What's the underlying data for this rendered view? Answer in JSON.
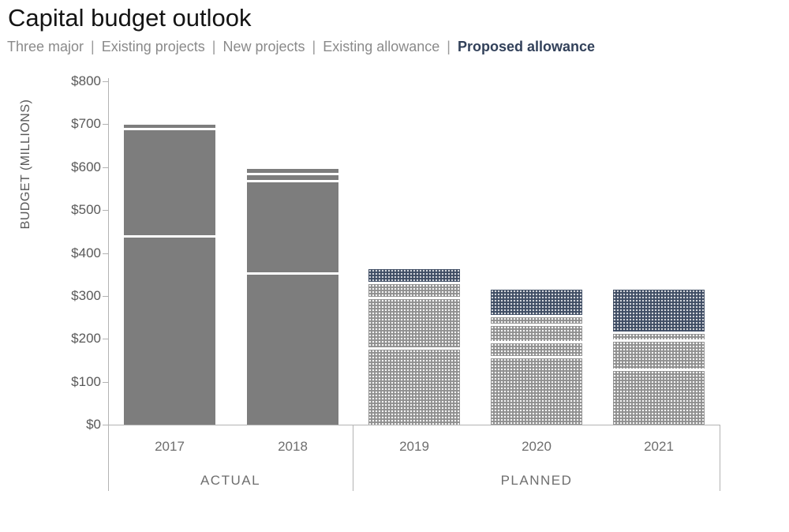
{
  "title": "Capital budget outlook",
  "legend": {
    "separator": "|",
    "items": [
      {
        "label": "Three major",
        "emphasis": false
      },
      {
        "label": "Existing projects",
        "emphasis": false
      },
      {
        "label": "New projects",
        "emphasis": false
      },
      {
        "label": "Existing allowance",
        "emphasis": false
      },
      {
        "label": "Proposed allowance",
        "emphasis": true
      }
    ]
  },
  "colors": {
    "title_text": "#141414",
    "legend_gray": "#8a8a8a",
    "legend_navy": "#32415a",
    "axis_text": "#595959",
    "axis_line": "#b3b3b3",
    "bar_solid_gray": "#7d7d7d",
    "bar_pattern_gray": "#8f8f8f",
    "bar_pattern_navy": "#3e4c63",
    "segment_separator": "#ffffff"
  },
  "chart_data": {
    "type": "bar",
    "stacked": true,
    "title": "Capital budget outlook",
    "xlabel": "",
    "ylabel": "BUDGET (MILLIONS)",
    "ylim": [
      0,
      800
    ],
    "grid": false,
    "legend_position": "top",
    "categories": [
      "2017",
      "2018",
      "2019",
      "2020",
      "2021"
    ],
    "year_styles": [
      "solid",
      "solid",
      "pattern",
      "pattern",
      "pattern"
    ],
    "yticks": [
      {
        "label": "$0",
        "value": 0
      },
      {
        "label": "$100",
        "value": 100
      },
      {
        "label": "$200",
        "value": 200
      },
      {
        "label": "$300",
        "value": 300
      },
      {
        "label": "$400",
        "value": 400
      },
      {
        "label": "$500",
        "value": 500
      },
      {
        "label": "$600",
        "value": 600
      },
      {
        "label": "$700",
        "value": 700
      },
      {
        "label": "$800",
        "value": 800
      }
    ],
    "series": [
      {
        "name": "Three major",
        "highlight": false,
        "values": [
          435,
          350,
          175,
          155,
          125
        ]
      },
      {
        "name": "Existing projects",
        "highlight": false,
        "values": [
          250,
          215,
          118,
          35,
          68
        ]
      },
      {
        "name": "New projects",
        "highlight": false,
        "values": [
          12,
          17,
          0,
          40,
          0
        ]
      },
      {
        "name": "Existing allowance",
        "highlight": false,
        "values": [
          0,
          15,
          35,
          20,
          18
        ]
      },
      {
        "name": "Proposed allowance",
        "highlight": true,
        "values": [
          0,
          0,
          35,
          65,
          103
        ]
      }
    ],
    "totals_approx": [
      697,
      597,
      363,
      315,
      314
    ],
    "groups": [
      {
        "label": "ACTUAL",
        "years": [
          "2017",
          "2018"
        ]
      },
      {
        "label": "PLANNED",
        "years": [
          "2019",
          "2020",
          "2021"
        ]
      }
    ]
  },
  "x_axis": {
    "year_labels": [
      "2017",
      "2018",
      "2019",
      "2020",
      "2021"
    ],
    "group_labels": [
      "ACTUAL",
      "PLANNED"
    ]
  },
  "y_axis": {
    "label": "BUDGET (MILLIONS)"
  }
}
